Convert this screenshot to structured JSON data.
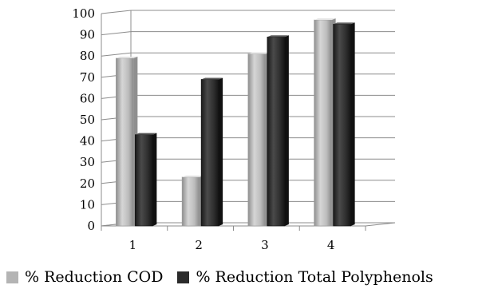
{
  "chart_data": {
    "type": "bar",
    "categories": [
      "1",
      "2",
      "3",
      "4"
    ],
    "series": [
      {
        "name": "% Reduction COD",
        "values": [
          79,
          23,
          81,
          97
        ],
        "color": "#b4b4b4"
      },
      {
        "name": "% Reduction Total Polyphenols",
        "values": [
          43,
          69,
          89,
          95
        ],
        "color": "#2b2b2b"
      }
    ],
    "ylim": [
      0,
      100
    ],
    "yticks": [
      "0",
      "10",
      "20",
      "30",
      "40",
      "50",
      "60",
      "70",
      "80",
      "90",
      "100"
    ],
    "grid": true,
    "legend_position": "bottom-left",
    "title": "",
    "xlabel": "",
    "ylabel": ""
  }
}
